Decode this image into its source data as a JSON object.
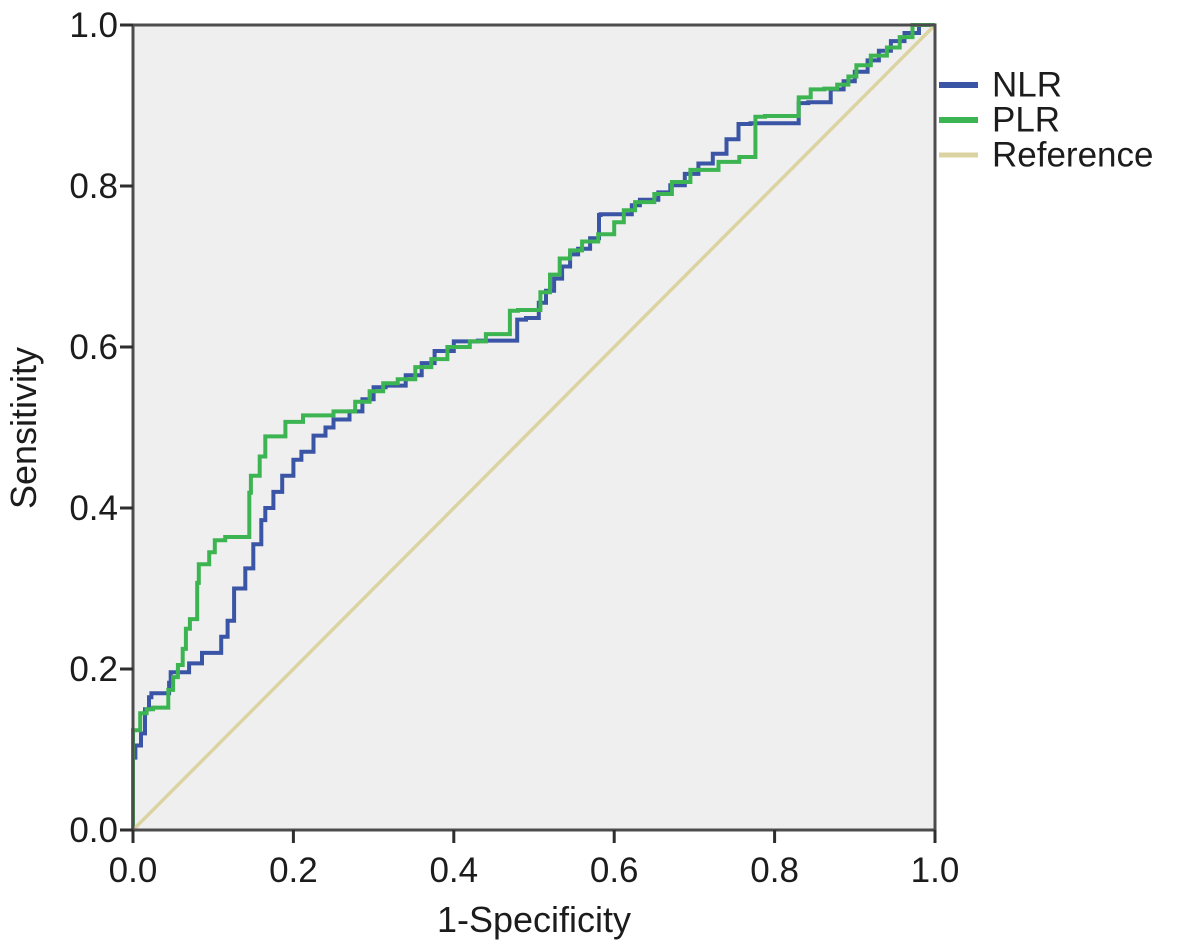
{
  "chart_data": {
    "type": "line",
    "subtype": "roc-curve",
    "title": "",
    "xlabel": "1-Specificity",
    "ylabel": "Sensitivity",
    "xlim": [
      0,
      1
    ],
    "ylim": [
      0,
      1
    ],
    "xticks": [
      "0.0",
      "0.2",
      "0.4",
      "0.6",
      "0.8",
      "1.0"
    ],
    "yticks": [
      "0.0",
      "0.2",
      "0.4",
      "0.6",
      "0.8",
      "1.0"
    ],
    "grid": false,
    "legend_position": "outside-top-right",
    "colors": {
      "plot_background": "#efefef",
      "frame": "#4c4c4e",
      "tick": "#2e2e2e",
      "text": "#1c1c1c",
      "page_background": "#ffffff"
    },
    "series": [
      {
        "name": "NLR",
        "color": "#3a54a6",
        "style": "roc-step",
        "stroke_width": 4,
        "points": [
          [
            0.0,
            0.0
          ],
          [
            0.003,
            0.09
          ],
          [
            0.01,
            0.105
          ],
          [
            0.015,
            0.12
          ],
          [
            0.02,
            0.15
          ],
          [
            0.023,
            0.165
          ],
          [
            0.045,
            0.17
          ],
          [
            0.047,
            0.183
          ],
          [
            0.07,
            0.196
          ],
          [
            0.086,
            0.207
          ],
          [
            0.11,
            0.22
          ],
          [
            0.118,
            0.24
          ],
          [
            0.126,
            0.26
          ],
          [
            0.14,
            0.3
          ],
          [
            0.15,
            0.325
          ],
          [
            0.16,
            0.355
          ],
          [
            0.165,
            0.385
          ],
          [
            0.175,
            0.4
          ],
          [
            0.186,
            0.42
          ],
          [
            0.2,
            0.44
          ],
          [
            0.21,
            0.46
          ],
          [
            0.225,
            0.47
          ],
          [
            0.24,
            0.49
          ],
          [
            0.25,
            0.5
          ],
          [
            0.27,
            0.51
          ],
          [
            0.286,
            0.52
          ],
          [
            0.3,
            0.535
          ],
          [
            0.315,
            0.55
          ],
          [
            0.34,
            0.552
          ],
          [
            0.36,
            0.565
          ],
          [
            0.376,
            0.58
          ],
          [
            0.4,
            0.595
          ],
          [
            0.43,
            0.607
          ],
          [
            0.479,
            0.608
          ],
          [
            0.49,
            0.634
          ],
          [
            0.506,
            0.636
          ],
          [
            0.515,
            0.655
          ],
          [
            0.525,
            0.67
          ],
          [
            0.535,
            0.685
          ],
          [
            0.545,
            0.7
          ],
          [
            0.555,
            0.715
          ],
          [
            0.57,
            0.722
          ],
          [
            0.581,
            0.735
          ],
          [
            0.583,
            0.764
          ],
          [
            0.622,
            0.765
          ],
          [
            0.632,
            0.776
          ],
          [
            0.655,
            0.783
          ],
          [
            0.67,
            0.792
          ],
          [
            0.688,
            0.801
          ],
          [
            0.705,
            0.815
          ],
          [
            0.723,
            0.828
          ],
          [
            0.74,
            0.84
          ],
          [
            0.755,
            0.858
          ],
          [
            0.77,
            0.877
          ],
          [
            0.83,
            0.878
          ],
          [
            0.842,
            0.903
          ],
          [
            0.87,
            0.904
          ],
          [
            0.886,
            0.92
          ],
          [
            0.9,
            0.93
          ],
          [
            0.916,
            0.942
          ],
          [
            0.93,
            0.956
          ],
          [
            0.945,
            0.968
          ],
          [
            0.962,
            0.98
          ],
          [
            0.98,
            0.99
          ],
          [
            1.0,
            1.0
          ]
        ]
      },
      {
        "name": "PLR",
        "color": "#3cb451",
        "style": "roc-step",
        "stroke_width": 4,
        "points": [
          [
            0.0,
            0.0
          ],
          [
            0.009,
            0.124
          ],
          [
            0.017,
            0.145
          ],
          [
            0.025,
            0.15
          ],
          [
            0.044,
            0.152
          ],
          [
            0.05,
            0.174
          ],
          [
            0.056,
            0.19
          ],
          [
            0.062,
            0.205
          ],
          [
            0.066,
            0.225
          ],
          [
            0.071,
            0.25
          ],
          [
            0.08,
            0.262
          ],
          [
            0.082,
            0.307
          ],
          [
            0.095,
            0.33
          ],
          [
            0.102,
            0.345
          ],
          [
            0.115,
            0.36
          ],
          [
            0.145,
            0.364
          ],
          [
            0.147,
            0.419
          ],
          [
            0.158,
            0.44
          ],
          [
            0.165,
            0.464
          ],
          [
            0.19,
            0.489
          ],
          [
            0.212,
            0.507
          ],
          [
            0.25,
            0.515
          ],
          [
            0.277,
            0.52
          ],
          [
            0.295,
            0.532
          ],
          [
            0.312,
            0.545
          ],
          [
            0.33,
            0.555
          ],
          [
            0.352,
            0.56
          ],
          [
            0.372,
            0.575
          ],
          [
            0.392,
            0.585
          ],
          [
            0.42,
            0.6
          ],
          [
            0.44,
            0.607
          ],
          [
            0.47,
            0.616
          ],
          [
            0.48,
            0.645
          ],
          [
            0.508,
            0.646
          ],
          [
            0.52,
            0.668
          ],
          [
            0.532,
            0.69
          ],
          [
            0.545,
            0.71
          ],
          [
            0.56,
            0.72
          ],
          [
            0.58,
            0.731
          ],
          [
            0.6,
            0.74
          ],
          [
            0.612,
            0.755
          ],
          [
            0.626,
            0.77
          ],
          [
            0.65,
            0.78
          ],
          [
            0.672,
            0.79
          ],
          [
            0.695,
            0.805
          ],
          [
            0.73,
            0.82
          ],
          [
            0.756,
            0.83
          ],
          [
            0.776,
            0.836
          ],
          [
            0.788,
            0.886
          ],
          [
            0.83,
            0.887
          ],
          [
            0.845,
            0.91
          ],
          [
            0.862,
            0.92
          ],
          [
            0.878,
            0.921
          ],
          [
            0.892,
            0.926
          ],
          [
            0.902,
            0.936
          ],
          [
            0.92,
            0.95
          ],
          [
            0.94,
            0.962
          ],
          [
            0.956,
            0.972
          ],
          [
            0.972,
            0.985
          ],
          [
            1.0,
            1.0
          ]
        ]
      },
      {
        "name": "Reference",
        "color": "#dbd4a2",
        "style": "straight",
        "stroke_width": 3.5,
        "points": [
          [
            0,
            0
          ],
          [
            1,
            1
          ]
        ]
      }
    ]
  }
}
